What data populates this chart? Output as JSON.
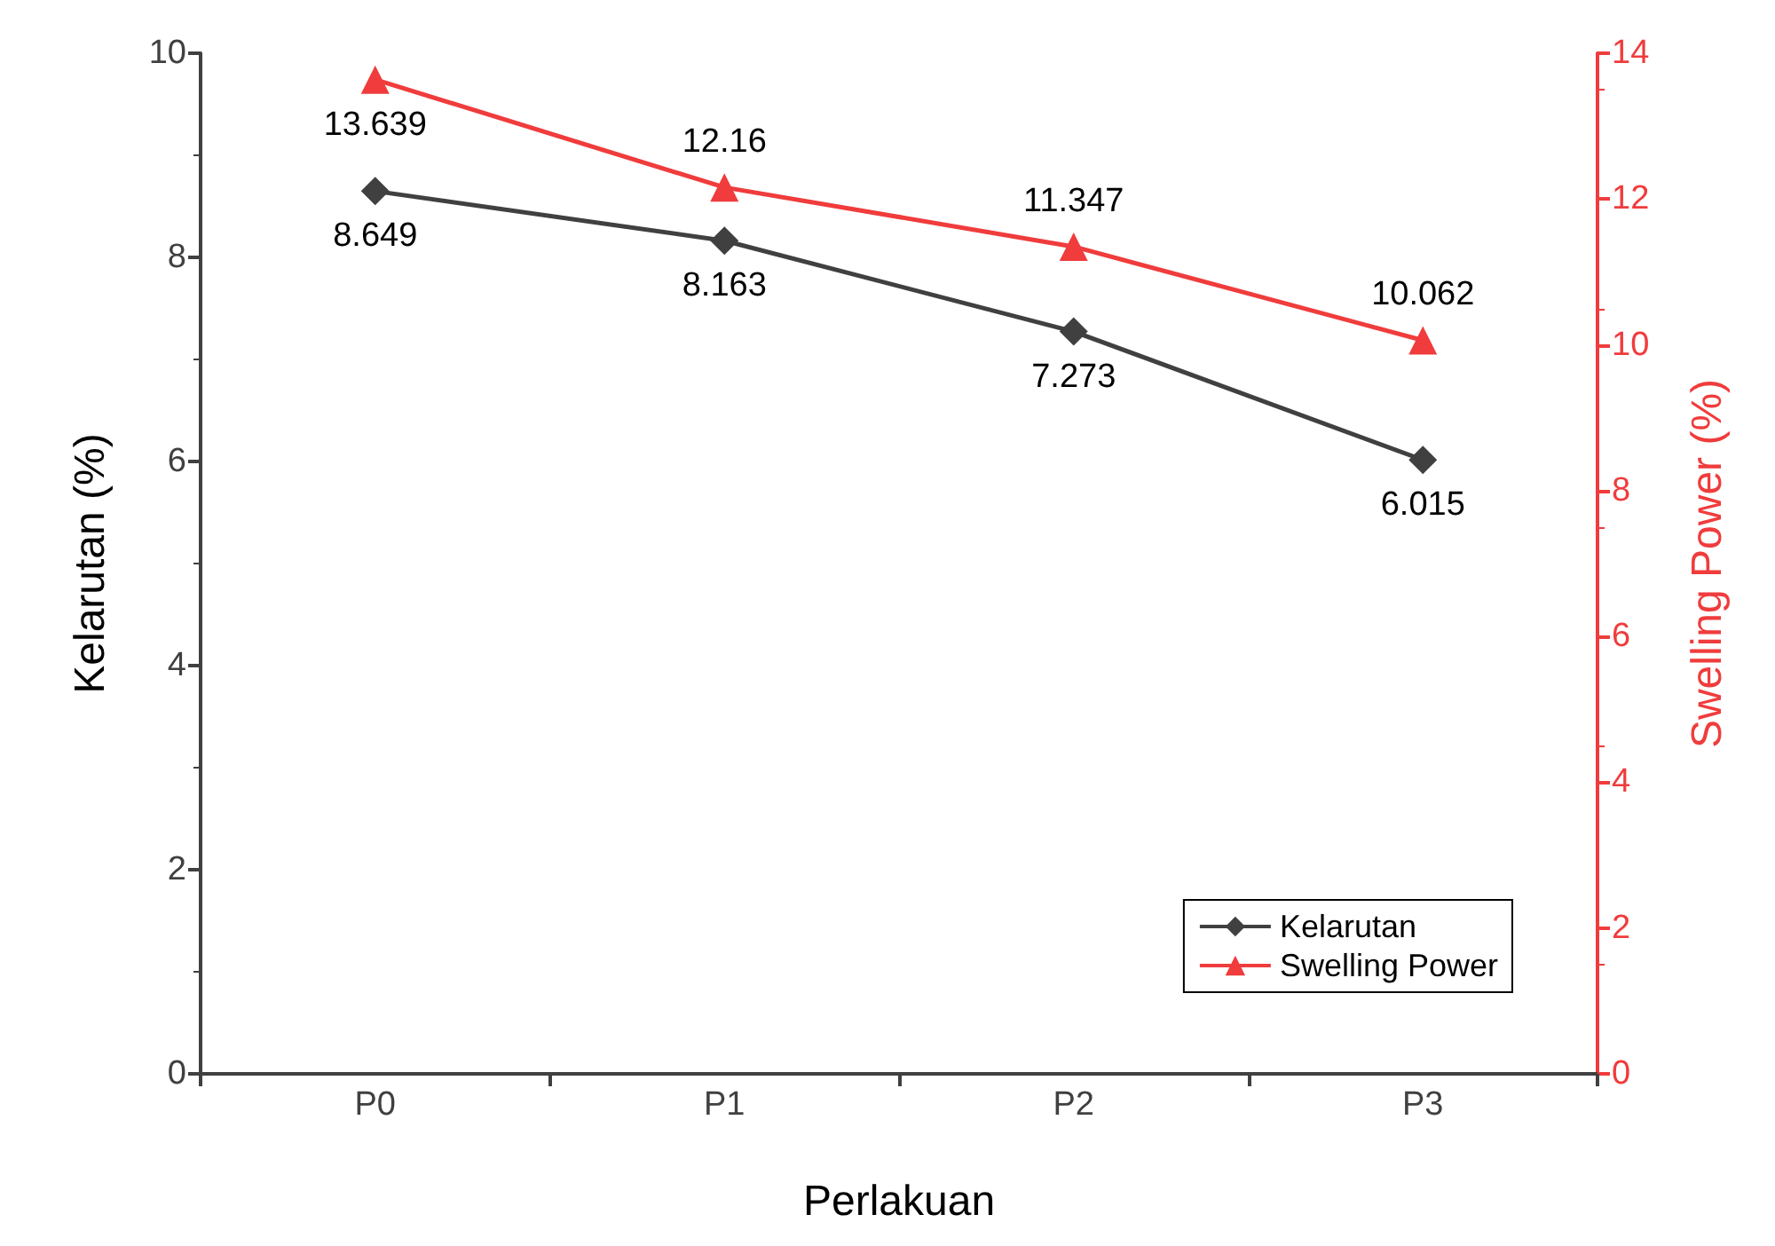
{
  "chart_data": {
    "type": "line",
    "xlabel": "Perlakuan",
    "ylabel": "Kelarutan (%)",
    "y2label": "Swelling Power (%)",
    "categories": [
      "P0",
      "P1",
      "P2",
      "P3"
    ],
    "series": [
      {
        "name": "Kelarutan",
        "color": "#404040",
        "marker": "diamond",
        "values": [
          8.649,
          8.163,
          7.273,
          6.015
        ]
      },
      {
        "name": "Swelling Power",
        "color": "#f03c3c",
        "marker": "triangle",
        "axis": "y2",
        "values": [
          13.639,
          12.16,
          11.347,
          10.062
        ]
      }
    ],
    "ylim": [
      0,
      10
    ],
    "yticks": [
      0,
      2,
      4,
      6,
      8,
      10
    ],
    "y2lim": [
      0,
      14
    ],
    "y2ticks": [
      0,
      2,
      4,
      6,
      8,
      10,
      12,
      14
    ],
    "data_labels": true,
    "legend": "bottom right",
    "grid": false
  }
}
